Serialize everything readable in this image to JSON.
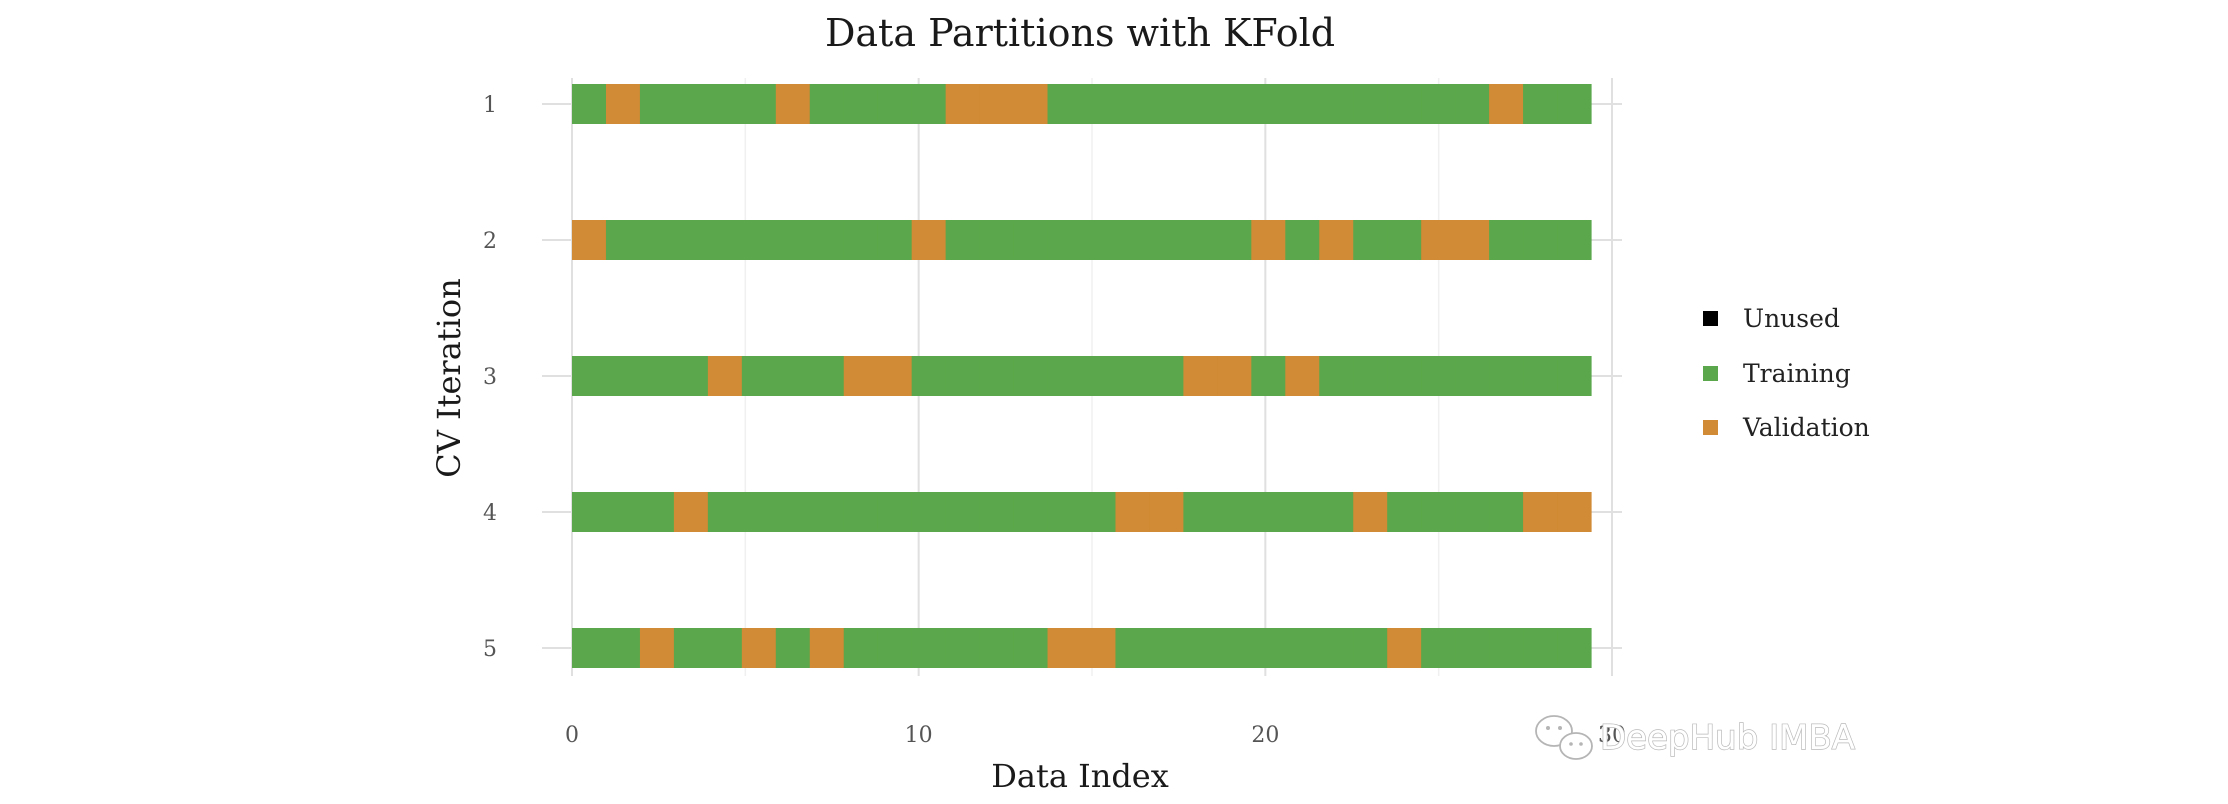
{
  "chart_data": {
    "type": "bar",
    "title": "Data Partitions with KFold",
    "xlabel": "Data Index",
    "ylabel": "CV Iteration",
    "xlim": [
      0,
      30
    ],
    "x_ticks": [
      "0",
      "10",
      "20",
      "30"
    ],
    "categories": [
      "1",
      "2",
      "3",
      "4",
      "5"
    ],
    "grid": true,
    "legend_position": "right",
    "legend": [
      {
        "name": "Unused",
        "color": "#000000"
      },
      {
        "name": "Training",
        "color": "#5aa84b"
      },
      {
        "name": "Validation",
        "color": "#d18a35"
      }
    ],
    "data_length": 30,
    "series": [
      {
        "name": "1",
        "validation_indices": [
          1,
          6,
          11,
          12,
          13,
          27
        ]
      },
      {
        "name": "2",
        "validation_indices": [
          0,
          10,
          20,
          22,
          25,
          26
        ]
      },
      {
        "name": "3",
        "validation_indices": [
          4,
          8,
          9,
          18,
          19,
          21
        ]
      },
      {
        "name": "4",
        "validation_indices": [
          3,
          16,
          17,
          23,
          28,
          29
        ]
      },
      {
        "name": "5",
        "validation_indices": [
          2,
          5,
          7,
          14,
          15,
          24
        ]
      }
    ]
  },
  "watermark": "DeepHub IMBA"
}
